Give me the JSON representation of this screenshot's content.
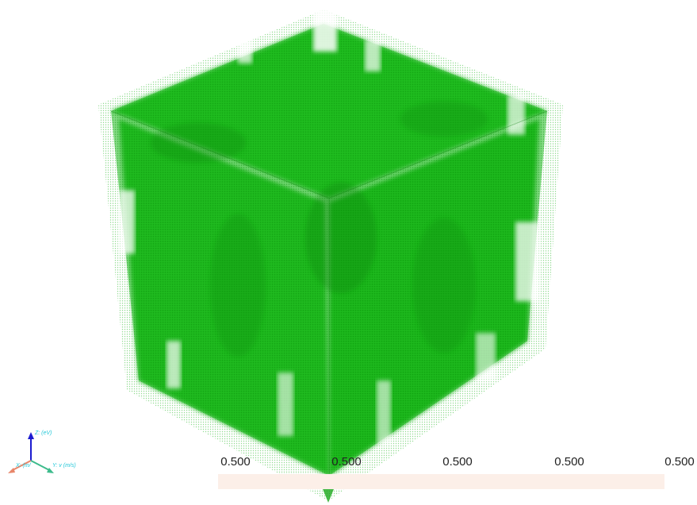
{
  "colors": {
    "volume": "#00bb00",
    "volume_dark": "#0a8a0a",
    "colorbar": "#fcefe8",
    "x_axis": "#e8866a",
    "y_axis": "#3dbb8c",
    "z_axis": "#1c1cd0",
    "axis_label": "#22c7d8"
  },
  "axes": {
    "z_label": "Z: (eV)",
    "x_label": "X: (m/",
    "y_label": "Y: v (m/s)"
  },
  "colorbar": {
    "ticks": [
      "0.500",
      "0.500",
      "0.500",
      "0.500",
      "0.500"
    ]
  }
}
